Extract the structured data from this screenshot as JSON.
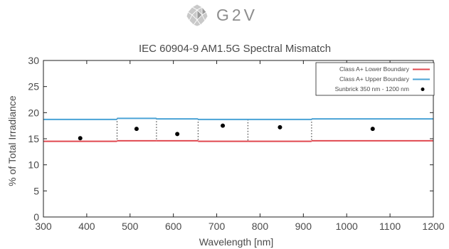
{
  "logo": {
    "text": "G2V",
    "icon": "geodesic-sphere-icon"
  },
  "chart_data": {
    "type": "line",
    "title": "IEC 60904-9 AM1.5G Spectral Mismatch",
    "xlabel": "Wavelength [nm]",
    "ylabel": "% of Total Irradiance",
    "xlim": [
      300,
      1200
    ],
    "ylim": [
      0,
      30
    ],
    "xticks": [
      300,
      400,
      500,
      600,
      700,
      800,
      900,
      1000,
      1100,
      1200
    ],
    "yticks": [
      0,
      5,
      10,
      15,
      20,
      25,
      30
    ],
    "grid": false,
    "legend_position": "top-right",
    "bins": [
      {
        "start": 300,
        "end": 470,
        "lower": 14.5,
        "upper": 18.7,
        "measured_x": 385,
        "measured": 15.1
      },
      {
        "start": 470,
        "end": 561,
        "lower": 14.6,
        "upper": 18.9,
        "measured_x": 515,
        "measured": 16.9
      },
      {
        "start": 561,
        "end": 657,
        "lower": 14.6,
        "upper": 18.8,
        "measured_x": 609,
        "measured": 15.9
      },
      {
        "start": 657,
        "end": 772,
        "lower": 14.5,
        "upper": 18.7,
        "measured_x": 714,
        "measured": 17.5
      },
      {
        "start": 772,
        "end": 919,
        "lower": 14.5,
        "upper": 18.7,
        "measured_x": 846,
        "measured": 17.2
      },
      {
        "start": 919,
        "end": 1200,
        "lower": 14.6,
        "upper": 18.8,
        "measured_x": 1060,
        "measured": 16.9
      }
    ],
    "series": [
      {
        "name": "Class A+ Lower Boundary",
        "color": "#e0484f",
        "kind": "line"
      },
      {
        "name": "Class A+ Upper Boundary",
        "color": "#4aa3d6",
        "kind": "line"
      },
      {
        "name": "Sunbrick 350 nm - 1200 nm",
        "color": "#000000",
        "kind": "marker"
      }
    ]
  }
}
